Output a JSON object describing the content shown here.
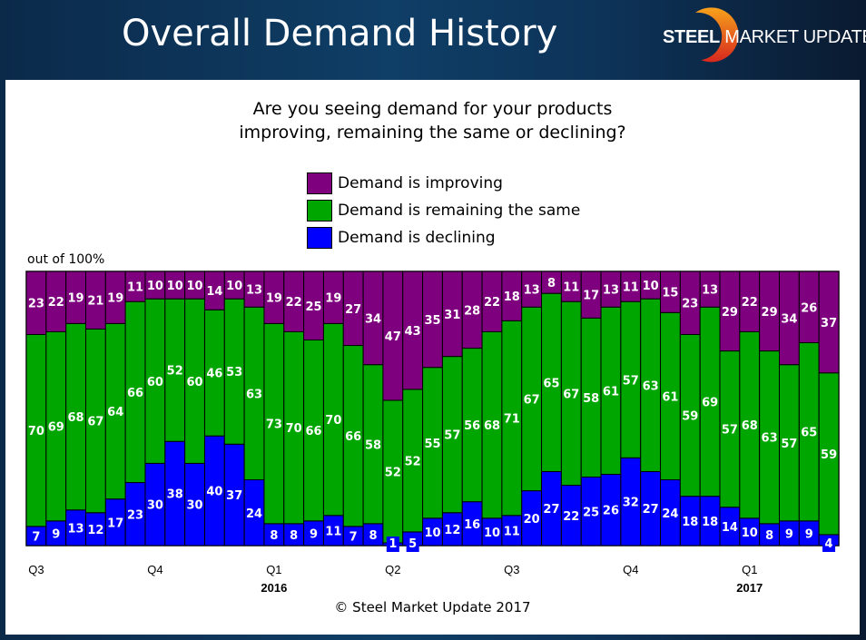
{
  "header": {
    "title": "Overall Demand History",
    "logo": {
      "bold": "STEEL",
      "mid": "MARKET",
      "light": "UPDATE"
    }
  },
  "question_line1": "Are you seeing demand for your products",
  "question_line2": "improving, remaining the same or declining?",
  "unit_label": "out of 100%",
  "copyright": "© Steel Market Update 2017",
  "colors": {
    "improving": "#7f007f",
    "same": "#00a600",
    "declining": "#0000ff"
  },
  "chart_data": {
    "type": "bar",
    "stacked": true,
    "title": "Are you seeing demand for your products improving, remaining the same or declining?",
    "ylabel": "out of 100%",
    "ylim": [
      0,
      100
    ],
    "legend": "top-center",
    "legend_entries": [
      "Demand is improving",
      "Demand is remaining the same",
      "Demand is declining"
    ],
    "quarter_ticks": [
      {
        "bar": 0,
        "label": "Q3",
        "year": ""
      },
      {
        "bar": 6,
        "label": "Q4",
        "year": ""
      },
      {
        "bar": 12,
        "label": "Q1",
        "year": "2016"
      },
      {
        "bar": 18,
        "label": "Q2",
        "year": ""
      },
      {
        "bar": 24,
        "label": "Q3",
        "year": ""
      },
      {
        "bar": 30,
        "label": "Q4",
        "year": ""
      },
      {
        "bar": 36,
        "label": "Q1",
        "year": "2017"
      }
    ],
    "series": [
      {
        "name": "Demand is declining",
        "key": "declining",
        "values": [
          7,
          9,
          13,
          12,
          17,
          23,
          30,
          38,
          30,
          40,
          37,
          24,
          8,
          8,
          9,
          11,
          7,
          8,
          1,
          5,
          10,
          12,
          16,
          10,
          11,
          20,
          27,
          22,
          25,
          26,
          32,
          27,
          24,
          18,
          18,
          14,
          10,
          8,
          9,
          9,
          4
        ]
      },
      {
        "name": "Demand is remaining the same",
        "key": "same",
        "values": [
          70,
          69,
          68,
          67,
          64,
          66,
          60,
          52,
          60,
          46,
          53,
          63,
          73,
          70,
          66,
          70,
          66,
          58,
          52,
          52,
          55,
          57,
          56,
          68,
          71,
          67,
          65,
          67,
          58,
          61,
          57,
          63,
          61,
          59,
          69,
          57,
          68,
          63,
          57,
          65,
          59
        ]
      },
      {
        "name": "Demand is improving",
        "key": "improving",
        "values": [
          23,
          22,
          19,
          21,
          19,
          11,
          10,
          10,
          10,
          14,
          10,
          13,
          19,
          22,
          25,
          19,
          27,
          34,
          47,
          43,
          35,
          31,
          28,
          22,
          18,
          13,
          8,
          11,
          17,
          13,
          11,
          10,
          15,
          23,
          13,
          29,
          22,
          29,
          34,
          26,
          37
        ]
      }
    ]
  }
}
